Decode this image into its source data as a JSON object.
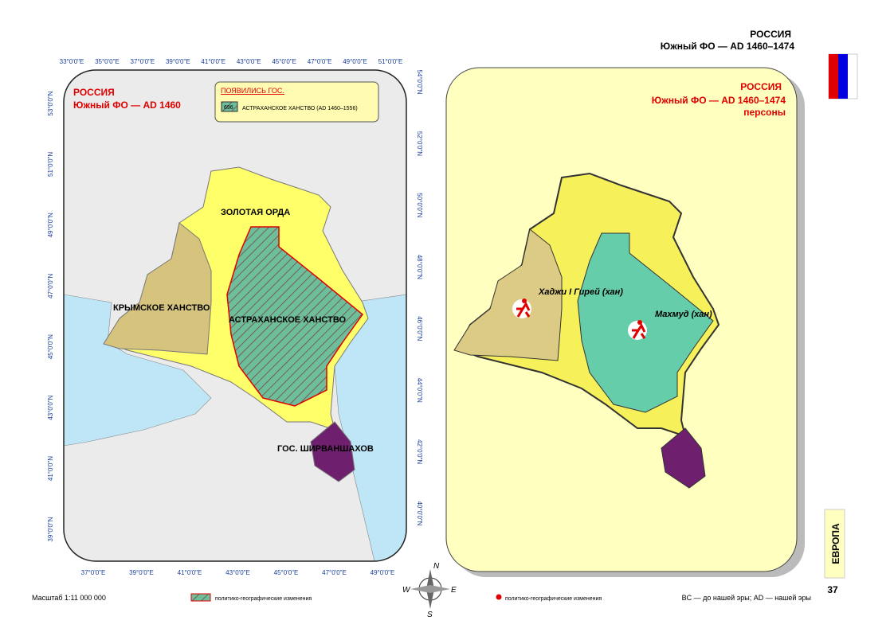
{
  "header": {
    "country": "РОССИЯ",
    "subtitle": "Южный ФО — AD 1460–1474"
  },
  "left_map": {
    "title": "РОССИЯ",
    "subtitle": "Южный ФО — AD 1460",
    "legend": {
      "heading": "ПОЯВИЛИСЬ ГОС.",
      "code": "696",
      "label": "АСТРАХАНСКОЕ ХАНСТВО (AD 1460–1556)"
    },
    "regions": [
      "ЗОЛОТАЯ ОРДА",
      "КРЫМСКОЕ ХАНСТВО",
      "АСТРАХАНСКОЕ ХАНСТВО",
      "ГОС. ШИРВАНШАХОВ"
    ],
    "top_longitudes": [
      "33°0'0\"E",
      "35°0'0\"E",
      "37°0'0\"E",
      "39°0'0\"E",
      "41°0'0\"E",
      "43°0'0\"E",
      "45°0'0\"E",
      "47°0'0\"E",
      "49°0'0\"E",
      "51°0'0\"E"
    ],
    "bottom_longitudes": [
      "37°0'0\"E",
      "39°0'0\"E",
      "41°0'0\"E",
      "43°0'0\"E",
      "45°0'0\"E",
      "47°0'0\"E",
      "49°0'0\"E"
    ],
    "left_latitudes": [
      "53°0'0\"N",
      "51°0'0\"N",
      "49°0'0\"N",
      "47°0'0\"N",
      "45°0'0\"N",
      "43°0'0\"N",
      "41°0'0\"N",
      "39°0'0\"N"
    ],
    "right_latitudes": [
      "54°0'0\"N",
      "52°0'0\"N",
      "50°0'0\"N",
      "48°0'0\"N",
      "46°0'0\"N",
      "44°0'0\"N",
      "42°0'0\"N",
      "40°0'0\"N"
    ]
  },
  "right_map": {
    "title": "РОССИЯ",
    "subtitle": "Южный ФО — AD 1460–1474",
    "note": "персоны",
    "persons": [
      "Хаджи I Гирей (хан)",
      "Махмуд (хан)"
    ]
  },
  "footer": {
    "scale": "Масштаб 1:11 000 000",
    "hatch_legend": "политико-географические изменения",
    "dot_legend": "политико-географические изменения",
    "era_note": "BC — до нашей эры; AD — нашей эры",
    "section": "ЕВРОПА",
    "page": "37"
  },
  "compass": [
    "N",
    "E",
    "S",
    "W"
  ]
}
